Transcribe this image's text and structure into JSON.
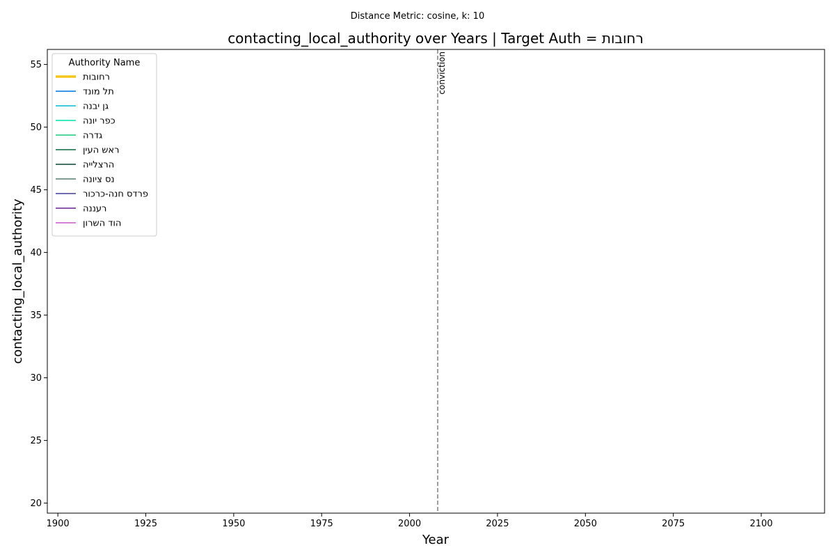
{
  "chart_data": {
    "type": "line",
    "suptitle": "Distance Metric: cosine, k: 10",
    "title": "contacting_local_authority over Years | Target Auth = רחובות",
    "xlabel": "Year",
    "ylabel": "contacting_local_authority",
    "xlim": [
      1897,
      2118
    ],
    "ylim": [
      19.2,
      56.2
    ],
    "x_ticks": [
      1900,
      1925,
      1950,
      1975,
      2000,
      2025,
      2050,
      2075,
      2100
    ],
    "y_ticks": [
      20,
      25,
      30,
      35,
      40,
      45,
      50,
      55
    ],
    "grid": false,
    "legend": {
      "title": "Authority Name",
      "placement": "top-left",
      "entries": [
        {
          "label": "רחובות",
          "color": "#f5c518",
          "highlight": true
        },
        {
          "label": "תל מונד",
          "color": "#1e88e5",
          "highlight": false
        },
        {
          "label": "גן יבנה",
          "color": "#26c6da",
          "highlight": false
        },
        {
          "label": "כפר יונה",
          "color": "#1de9b6",
          "highlight": false
        },
        {
          "label": "גדרה",
          "color": "#3ccf8e",
          "highlight": false
        },
        {
          "label": "ראש העין",
          "color": "#2e7d5b",
          "highlight": false
        },
        {
          "label": "הרצלייה",
          "color": "#2f5d50",
          "highlight": false
        },
        {
          "label": "נס ציונה",
          "color": "#6e8b84",
          "highlight": false
        },
        {
          "label": "פרדס חנה-כרכור",
          "color": "#5c5aa8",
          "highlight": false
        },
        {
          "label": "רעננה",
          "color": "#7b3fa0",
          "highlight": false
        },
        {
          "label": "הוד השרון",
          "color": "#d070d0",
          "highlight": false
        }
      ]
    },
    "series": [],
    "annotations": [
      {
        "type": "vline",
        "x": 2008,
        "label": "conviction",
        "style": "dashed",
        "color": "#7f7f7f"
      }
    ]
  }
}
